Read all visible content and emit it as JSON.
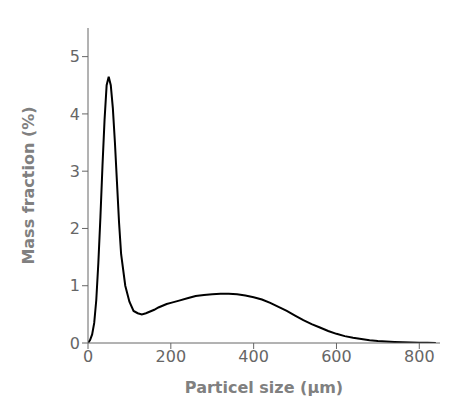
{
  "chart_data": {
    "type": "line",
    "xlabel": "Particel size (μm)",
    "ylabel": "Mass fraction (%)",
    "x": [
      0,
      5,
      10,
      15,
      20,
      25,
      30,
      35,
      40,
      45,
      50,
      55,
      60,
      65,
      70,
      75,
      80,
      90,
      100,
      110,
      120,
      130,
      140,
      150,
      160,
      170,
      180,
      190,
      200,
      220,
      240,
      260,
      280,
      300,
      320,
      340,
      360,
      380,
      400,
      420,
      440,
      460,
      480,
      500,
      520,
      540,
      560,
      580,
      600,
      620,
      640,
      660,
      680,
      700,
      720,
      740,
      760,
      780,
      800,
      820,
      840
    ],
    "values": [
      0.0,
      0.05,
      0.15,
      0.35,
      0.75,
      1.4,
      2.2,
      3.1,
      3.9,
      4.5,
      4.65,
      4.5,
      4.1,
      3.5,
      2.8,
      2.1,
      1.55,
      1.0,
      0.72,
      0.56,
      0.52,
      0.5,
      0.52,
      0.55,
      0.58,
      0.62,
      0.65,
      0.68,
      0.7,
      0.74,
      0.78,
      0.82,
      0.84,
      0.85,
      0.86,
      0.86,
      0.85,
      0.83,
      0.8,
      0.76,
      0.7,
      0.63,
      0.56,
      0.48,
      0.4,
      0.33,
      0.27,
      0.21,
      0.16,
      0.12,
      0.09,
      0.07,
      0.05,
      0.035,
      0.025,
      0.018,
      0.012,
      0.008,
      0.005,
      0.003,
      0.002
    ],
    "color": "#000000",
    "xlim": [
      0,
      850
    ],
    "ylim": [
      0,
      5.5
    ],
    "xticks": [
      0,
      200,
      400,
      600,
      800
    ],
    "yticks": [
      0,
      1,
      2,
      3,
      4,
      5
    ]
  }
}
